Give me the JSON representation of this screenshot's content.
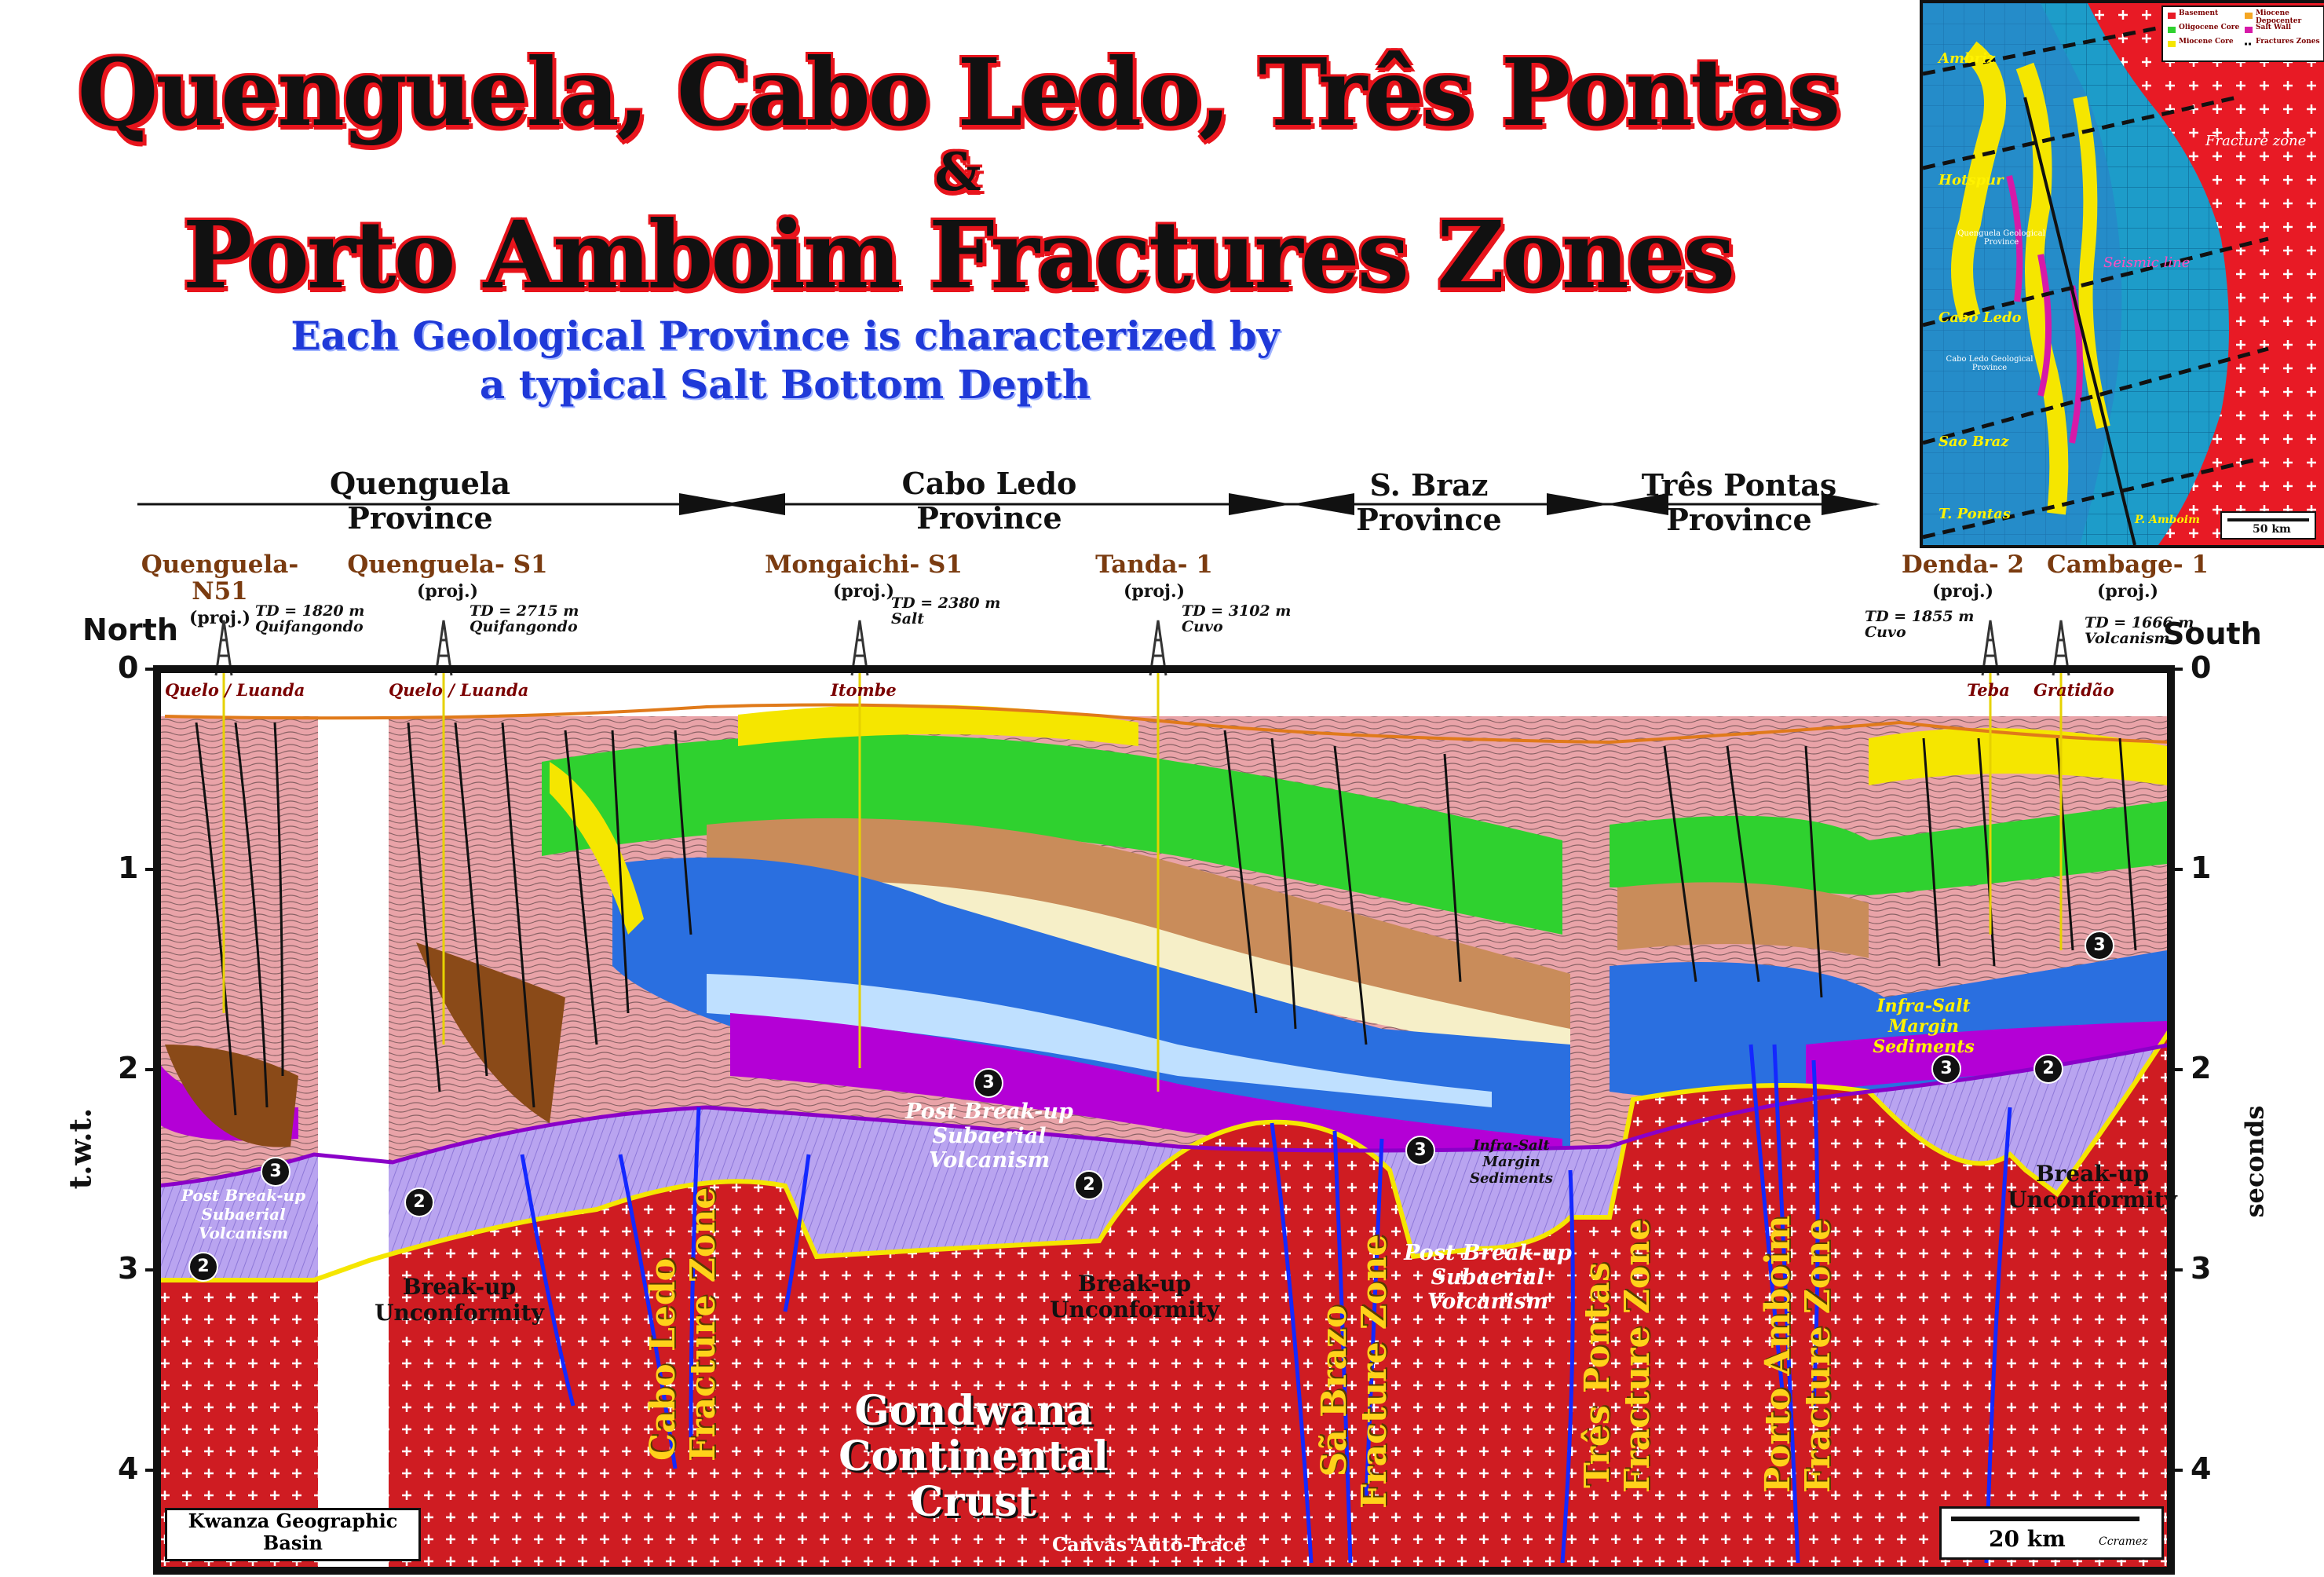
{
  "title": {
    "line1": "Quenguela, Cabo Ledo, Três Pontas",
    "line2": "&",
    "line3": "Porto Amboim Fractures Zones"
  },
  "subtitle": {
    "line1": "Each Geological Province is characterized by",
    "line2": "a typical  Salt Bottom Depth"
  },
  "provinces": [
    {
      "name": "Quenguela",
      "label": "Province"
    },
    {
      "name": "Cabo Ledo",
      "label": "Province"
    },
    {
      "name": "S. Braz",
      "label": "Province"
    },
    {
      "name": "Três Pontas",
      "label": "Province"
    }
  ],
  "wells": [
    {
      "name": "Quenguela- N51",
      "proj": "(proj.)",
      "td": "TD = 1820 m",
      "fm": "Quifangondo",
      "surface": "Quelo / Luanda"
    },
    {
      "name": "Quenguela- S1",
      "proj": "(proj.)",
      "td": "TD = 2715 m",
      "fm": "Quifangondo",
      "surface": "Quelo / Luanda"
    },
    {
      "name": "Mongaichi- S1",
      "proj": "(proj.)",
      "td": "TD = 2380 m",
      "fm": "Salt",
      "surface": "Itombe"
    },
    {
      "name": "Tanda- 1",
      "proj": "(proj.)",
      "td": "TD = 3102 m",
      "fm": "Cuvo",
      "surface": ""
    },
    {
      "name": "Denda- 2",
      "proj": "(proj.)",
      "td": "TD = 1855 m",
      "fm": "Cuvo",
      "surface": "Teba"
    },
    {
      "name": "Cambage- 1",
      "proj": "(proj.)",
      "td": "TD = 1666 m",
      "fm": "Volcanism",
      "surface": "Gratidão"
    }
  ],
  "axis": {
    "north": "North",
    "south": "South",
    "left_label": "t.w.t.",
    "right_label": "seconds",
    "ticks": [
      "0",
      "1",
      "2",
      "3",
      "4"
    ]
  },
  "labels": {
    "post_breakup_1": "Post Break-up Subaerial Volcanism",
    "post_breakup_2": "Post Break-up Subaerial Volcanism",
    "post_breakup_3": "Post Break-up Subaerial Volcanism",
    "infra_salt_1": "Infra-Salt Margin Sediments",
    "infra_salt_2": "Infra-Salt Margin Sediments",
    "breakup_1": "Break-up Unconformity",
    "breakup_2": "Break-up Unconformity",
    "breakup_3": "Break-up Unconformity",
    "crust_line1": "Gondwana",
    "crust_line2": "Continental Crust"
  },
  "zones": {
    "cabo_ledo_1": "Cabo Ledo",
    "cabo_ledo_2": "Fracture Zone",
    "sa_brazo_1": "Sã Brazo",
    "sa_brazo_2": "Fracture Zone",
    "tres_pontas_1": "Três Pontas",
    "tres_pontas_2": "Fracture Zone",
    "porto_amboim_1": "Porto Amboim",
    "porto_amboim_2": "Fracture Zone"
  },
  "footer": {
    "basin_line1": "Kwanza Geographic",
    "basin_line2": "Basin",
    "credit": "Canvas Auto-Trace",
    "scale": "20 km",
    "author": "Ccramez"
  },
  "inset_map": {
    "legend": [
      "Basement",
      "Oligocene Core",
      "Miocene Core",
      "Miocene Depocenter",
      "Salt Wall",
      "Fractures Zones"
    ],
    "places": [
      "Ambriz",
      "Hotspur",
      "Quenguela Geological Province",
      "Cabo Ledo",
      "Cabo Ledo Geological Province",
      "Sao Braz",
      "T. Pontas",
      "P. Amboim"
    ],
    "fracture_label": "Fracture zone",
    "seismic_label": "Seismic line",
    "scale": "50 km"
  },
  "colors": {
    "crust": "#cf1c22",
    "volcanism": "#b9a4f0",
    "salt": "#b400d6",
    "green": "#2fd12f",
    "blue": "#2a6fe0",
    "tan": "#c98c5a",
    "pink": "#e9a3a8",
    "yellow": "#f5e600",
    "fault_blue": "#1428ff"
  }
}
